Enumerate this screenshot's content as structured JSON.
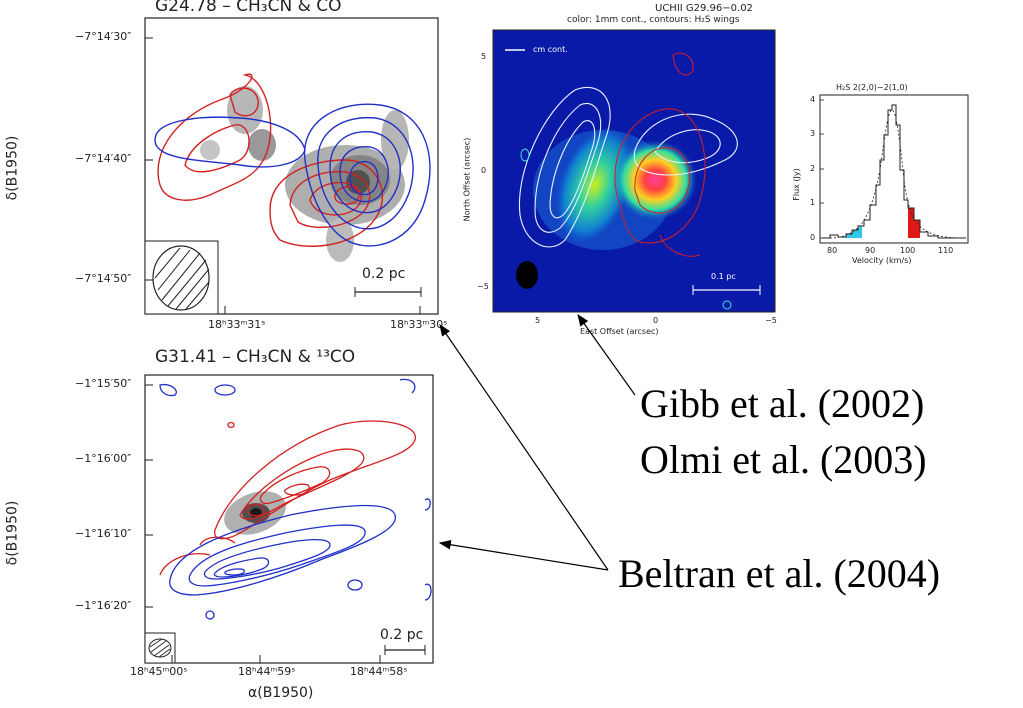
{
  "panel_g24": {
    "title": "G24.78 – CH₃CN & CO",
    "dec_ticks": [
      "−7°14′30″",
      "−7°14′40″",
      "−7°14′50″"
    ],
    "ra_ticks": [
      "18ʰ33ᵐ31ˢ",
      "18ʰ33ᵐ30ˢ"
    ],
    "ylabel": "δ(B1950)",
    "scale_label": "0.2 pc"
  },
  "panel_g29": {
    "title": "UCHII G29.96−0.02",
    "subtitle": "color: 1mm cont., contours: H₂S wings",
    "legend": "cm cont.",
    "xlabel": "East Offset (arcsec)",
    "ylabel": "North Offset (arcsec)",
    "xticks": [
      "5",
      "0",
      "−5"
    ],
    "yticks": [
      "5",
      "0",
      "−5"
    ],
    "scale_label": "0.1 pc"
  },
  "panel_spectrum": {
    "title": "H₂S 2(2,0)−2(1,0)",
    "xlabel": "Velocity (km/s)",
    "ylabel": "Flux (Jy)",
    "xticks": [
      "80",
      "90",
      "100",
      "110"
    ],
    "yticks": [
      "0",
      "1",
      "2",
      "3",
      "4"
    ]
  },
  "panel_g31": {
    "title": "G31.41 – CH₃CN & ¹³CO",
    "dec_ticks": [
      "−1°15′50″",
      "−1°16′00″",
      "−1°16′10″",
      "−1°16′20″"
    ],
    "ra_ticks": [
      "18ʰ45ᵐ00ˢ",
      "18ʰ44ᵐ59ˢ",
      "18ʰ44ᵐ58ˢ"
    ],
    "ylabel": "δ(B1950)",
    "xlabel": "α(B1950)",
    "scale_label": "0.2 pc"
  },
  "citations": {
    "gibb": "Gibb et al. (2002)",
    "olmi": "Olmi et al. (2003)",
    "beltran": "Beltran et al. (2004)"
  },
  "colors": {
    "red_contour": "#d42020",
    "blue_contour": "#2030c8",
    "map_background": "#0a1aa8"
  }
}
